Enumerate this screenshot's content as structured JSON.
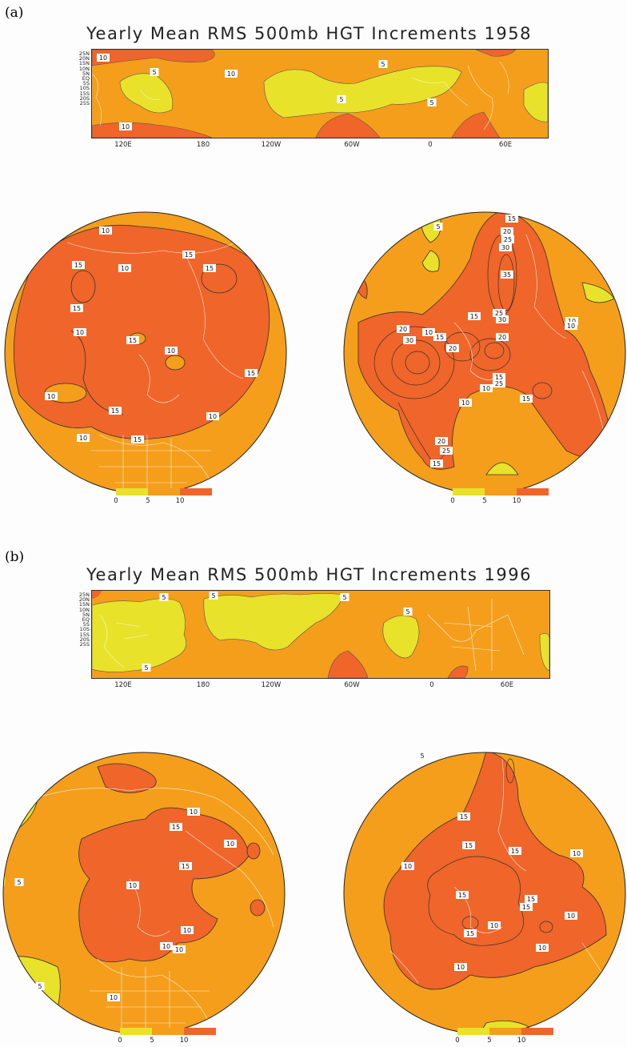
{
  "colors": {
    "low": "#e8e22a",
    "mid": "#f59e1b",
    "high": "#f0652a"
  },
  "colorbar": {
    "ticks": [
      "0",
      "5",
      "10"
    ]
  },
  "lat_labels": [
    "25N",
    "20N",
    "15N",
    "10N",
    "5N",
    "EQ",
    "5S",
    "10S",
    "15S",
    "20S",
    "25S"
  ],
  "lon_labels": [
    "120E",
    "180",
    "120W",
    "60W",
    "0",
    "60E"
  ],
  "panel_a": {
    "label": "(a)",
    "title": "Yearly Mean RMS 500mb HGT Increments 1958",
    "strip_contour_labels": [
      "10",
      "5",
      "10",
      "5",
      "5",
      "5",
      "10"
    ],
    "north_contour_labels": [
      "10",
      "15",
      "10",
      "15",
      "15",
      "15",
      "10",
      "10",
      "15",
      "10",
      "15",
      "10",
      "15",
      "15",
      "10"
    ],
    "south_contour_labels": [
      "5",
      "15",
      "20",
      "25",
      "30",
      "35",
      "10",
      "15",
      "20",
      "30",
      "10",
      "15",
      "20",
      "25",
      "30",
      "10",
      "15",
      "20",
      "25",
      "10",
      "15",
      "20",
      "25",
      "15",
      "10"
    ]
  },
  "panel_b": {
    "label": "(b)",
    "title": "Yearly Mean RMS 500mb HGT Increments 1996",
    "strip_contour_labels": [
      "5",
      "5",
      "5",
      "5",
      "5"
    ],
    "north_contour_labels": [
      "10",
      "15",
      "10",
      "10",
      "15",
      "10",
      "10",
      "10",
      "10",
      "5",
      "5"
    ],
    "south_contour_labels": [
      "5",
      "15",
      "15",
      "15",
      "10",
      "15",
      "15",
      "15",
      "15",
      "10",
      "10",
      "10",
      "10",
      "10"
    ]
  }
}
